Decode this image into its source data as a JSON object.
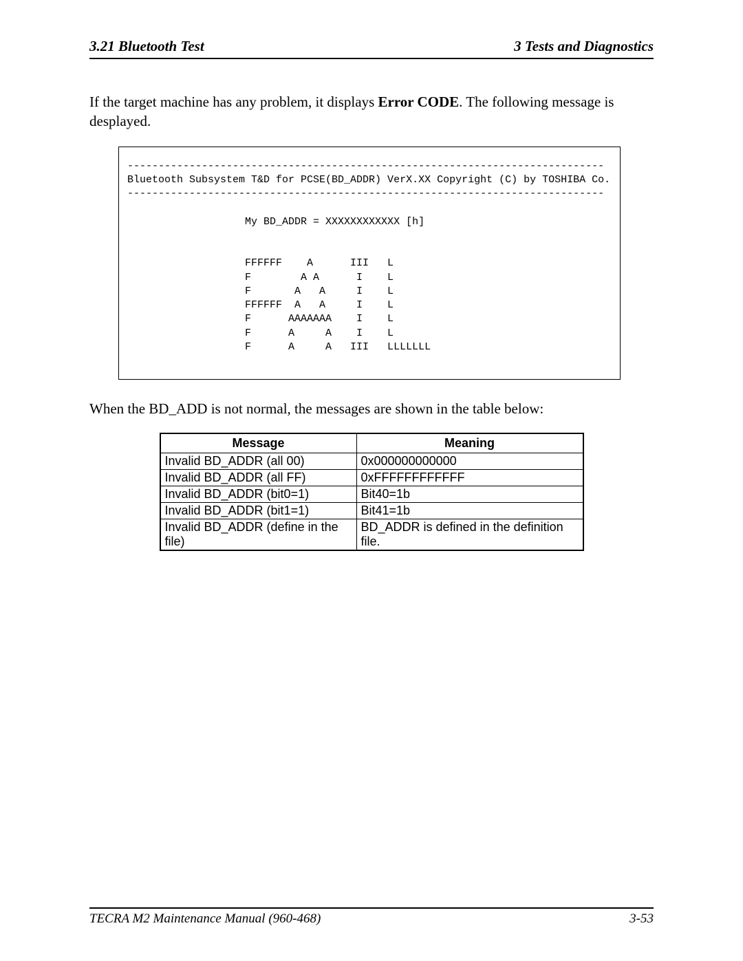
{
  "header": {
    "left": "3.21  Bluetooth Test",
    "right": "3   Tests and Diagnostics"
  },
  "intro": {
    "part1": "If the target machine has any problem, it displays ",
    "bold": "Error CODE",
    "part2": ". The following message is desplayed."
  },
  "console": {
    "text": "-----------------------------------------------------------------------------\nBluetooth Subsystem T&D for PCSE(BD_ADDR) VerX.XX Copyright (C) by TOSHIBA Co.\n-----------------------------------------------------------------------------\n\n                   My BD_ADDR = XXXXXXXXXXXX [h]\n\n\n                   FFFFFF    A      III   L\n                   F        A A      I    L\n                   F       A   A     I    L\n                   FFFFFF  A   A     I    L\n                   F      AAAAAAA    I    L\n                   F      A     A    I    L\n                   F      A     A   III   LLLLLLL\n"
  },
  "after": "When the BD_ADD is not normal, the messages are shown in the table below:",
  "table": {
    "columns": [
      "Message",
      "Meaning"
    ],
    "col_widths": [
      "268px",
      "312px"
    ],
    "rows": [
      [
        "Invalid BD_ADDR (all 00)",
        "0x000000000000"
      ],
      [
        "Invalid BD_ADDR (all FF)",
        "0xFFFFFFFFFFFF"
      ],
      [
        "Invalid BD_ADDR (bit0=1)",
        "Bit40=1b"
      ],
      [
        "Invalid BD_ADDR (bit1=1)",
        "Bit41=1b"
      ],
      [
        "Invalid BD_ADDR (define in the file)",
        "BD_ADDR is defined in the definition file."
      ]
    ]
  },
  "footer": {
    "left": "TECRA M2 Maintenance Manual (960-468)",
    "right": "3-53"
  }
}
